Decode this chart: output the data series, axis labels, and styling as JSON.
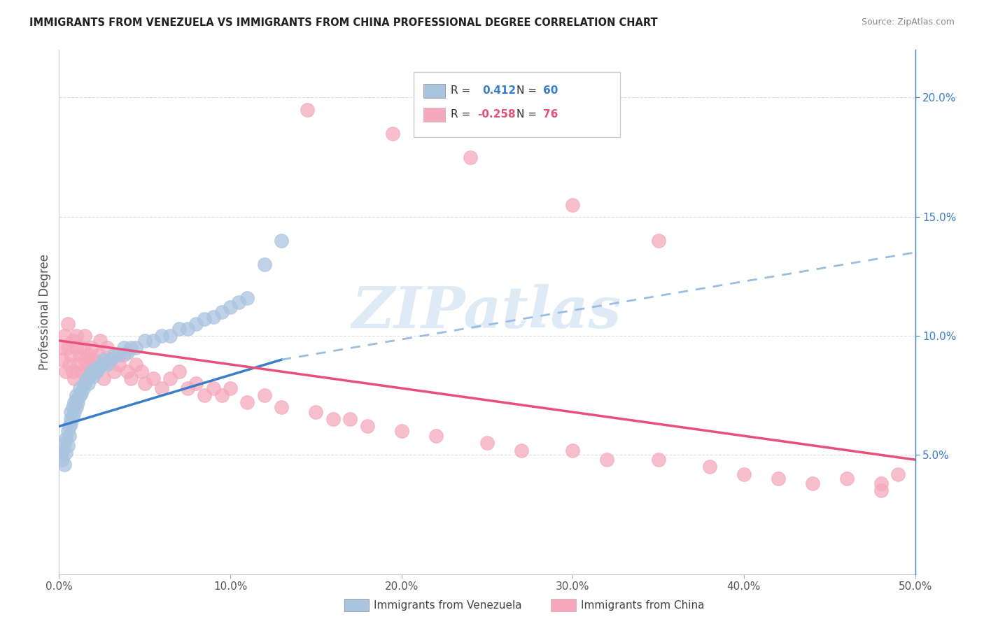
{
  "title": "IMMIGRANTS FROM VENEZUELA VS IMMIGRANTS FROM CHINA PROFESSIONAL DEGREE CORRELATION CHART",
  "source": "Source: ZipAtlas.com",
  "ylabel": "Professional Degree",
  "xlim": [
    0.0,
    0.5
  ],
  "ylim": [
    0.0,
    0.22
  ],
  "xticks": [
    0.0,
    0.1,
    0.2,
    0.3,
    0.4,
    0.5
  ],
  "xticklabels": [
    "0.0%",
    "10.0%",
    "20.0%",
    "30.0%",
    "40.0%",
    "50.0%"
  ],
  "yticks_right": [
    0.05,
    0.1,
    0.15,
    0.2
  ],
  "ytick_labels_right": [
    "5.0%",
    "10.0%",
    "15.0%",
    "20.0%"
  ],
  "color_venezuela": "#aac4e0",
  "color_china": "#f5a8bc",
  "trendline_venezuela_solid_color": "#3a7dc9",
  "trendline_venezuela_dashed_color": "#9abde0",
  "trendline_china_color": "#e8507a",
  "watermark_color": "#c8dff0",
  "watermark_text": "ZIPatlas",
  "legend_ven_r": "0.412",
  "legend_ven_n": "60",
  "legend_china_r": "-0.258",
  "legend_china_n": "76",
  "venezuela_x": [
    0.001,
    0.002,
    0.002,
    0.003,
    0.003,
    0.004,
    0.004,
    0.005,
    0.005,
    0.006,
    0.006,
    0.007,
    0.007,
    0.007,
    0.008,
    0.008,
    0.009,
    0.009,
    0.01,
    0.01,
    0.01,
    0.011,
    0.012,
    0.012,
    0.013,
    0.014,
    0.015,
    0.016,
    0.017,
    0.018,
    0.019,
    0.02,
    0.021,
    0.022,
    0.023,
    0.025,
    0.026,
    0.028,
    0.03,
    0.032,
    0.035,
    0.038,
    0.04,
    0.042,
    0.045,
    0.05,
    0.055,
    0.06,
    0.065,
    0.07,
    0.075,
    0.08,
    0.085,
    0.09,
    0.095,
    0.1,
    0.105,
    0.11,
    0.12,
    0.13
  ],
  "venezuela_y": [
    0.05,
    0.048,
    0.052,
    0.055,
    0.046,
    0.057,
    0.051,
    0.06,
    0.054,
    0.062,
    0.058,
    0.065,
    0.063,
    0.068,
    0.066,
    0.07,
    0.068,
    0.072,
    0.07,
    0.073,
    0.075,
    0.072,
    0.075,
    0.078,
    0.076,
    0.078,
    0.08,
    0.082,
    0.08,
    0.083,
    0.085,
    0.083,
    0.086,
    0.085,
    0.087,
    0.088,
    0.09,
    0.088,
    0.09,
    0.092,
    0.092,
    0.095,
    0.093,
    0.095,
    0.095,
    0.098,
    0.098,
    0.1,
    0.1,
    0.103,
    0.103,
    0.105,
    0.107,
    0.108,
    0.11,
    0.112,
    0.114,
    0.116,
    0.13,
    0.14
  ],
  "china_x": [
    0.001,
    0.002,
    0.003,
    0.004,
    0.005,
    0.005,
    0.006,
    0.007,
    0.008,
    0.008,
    0.009,
    0.01,
    0.01,
    0.011,
    0.012,
    0.013,
    0.014,
    0.015,
    0.015,
    0.016,
    0.017,
    0.018,
    0.019,
    0.02,
    0.022,
    0.023,
    0.024,
    0.025,
    0.026,
    0.028,
    0.03,
    0.032,
    0.035,
    0.038,
    0.04,
    0.042,
    0.045,
    0.048,
    0.05,
    0.055,
    0.06,
    0.065,
    0.07,
    0.075,
    0.08,
    0.085,
    0.09,
    0.095,
    0.1,
    0.11,
    0.12,
    0.13,
    0.15,
    0.16,
    0.17,
    0.18,
    0.2,
    0.22,
    0.25,
    0.27,
    0.3,
    0.32,
    0.35,
    0.38,
    0.4,
    0.42,
    0.44,
    0.46,
    0.48,
    0.49,
    0.145,
    0.195,
    0.24,
    0.3,
    0.35,
    0.48
  ],
  "china_y": [
    0.095,
    0.09,
    0.1,
    0.085,
    0.095,
    0.105,
    0.088,
    0.092,
    0.085,
    0.098,
    0.082,
    0.095,
    0.1,
    0.088,
    0.092,
    0.085,
    0.095,
    0.09,
    0.1,
    0.085,
    0.092,
    0.088,
    0.095,
    0.09,
    0.085,
    0.092,
    0.098,
    0.088,
    0.082,
    0.095,
    0.09,
    0.085,
    0.088,
    0.092,
    0.085,
    0.082,
    0.088,
    0.085,
    0.08,
    0.082,
    0.078,
    0.082,
    0.085,
    0.078,
    0.08,
    0.075,
    0.078,
    0.075,
    0.078,
    0.072,
    0.075,
    0.07,
    0.068,
    0.065,
    0.065,
    0.062,
    0.06,
    0.058,
    0.055,
    0.052,
    0.052,
    0.048,
    0.048,
    0.045,
    0.042,
    0.04,
    0.038,
    0.04,
    0.038,
    0.042,
    0.195,
    0.185,
    0.175,
    0.155,
    0.14,
    0.035
  ],
  "ven_trend_x0": 0.0,
  "ven_trend_x_solid_end": 0.13,
  "ven_trend_x_dash_end": 0.5,
  "ven_trend_y0": 0.062,
  "ven_trend_y_solid_end": 0.09,
  "ven_trend_y_dash_end": 0.135,
  "china_trend_x0": 0.0,
  "china_trend_x_end": 0.5,
  "china_trend_y0": 0.098,
  "china_trend_y_end": 0.048
}
